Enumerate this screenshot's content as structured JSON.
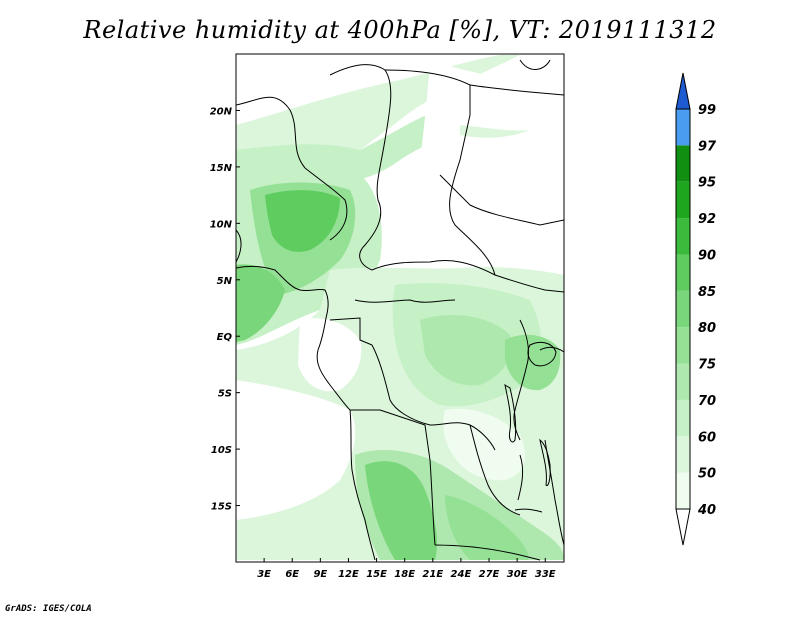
{
  "title": "Relative humidity at 400hPa [%], VT: 2019111312",
  "footer": "GrADS: IGES/COLA",
  "map": {
    "lat_labels": [
      "20N",
      "15N",
      "10N",
      "5N",
      "EQ",
      "5S",
      "10S",
      "15S"
    ],
    "lon_labels": [
      "3E",
      "6E",
      "9E",
      "12E",
      "15E",
      "18E",
      "21E",
      "24E",
      "27E",
      "30E",
      "33E"
    ],
    "lon_range": [
      0,
      35
    ],
    "lat_range": [
      -20,
      25
    ]
  },
  "colorbar": {
    "labels": [
      "40",
      "50",
      "60",
      "70",
      "75",
      "80",
      "85",
      "90",
      "92",
      "95",
      "97",
      "99"
    ],
    "colors": [
      "#f0fcf0",
      "#dcf6dc",
      "#c6f0c6",
      "#aee8ae",
      "#94e094",
      "#7ad67a",
      "#5ecc5e",
      "#3cba3c",
      "#1ea61e",
      "#118f11",
      "#4a9cf0",
      "#2a78e0",
      "#1e5ad0"
    ]
  }
}
